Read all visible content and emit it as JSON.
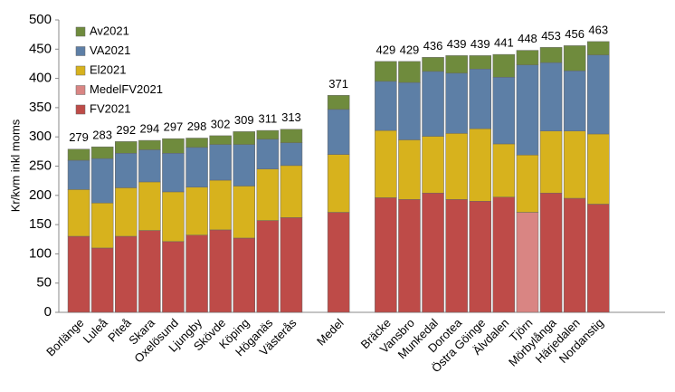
{
  "chart_data": {
    "type": "stacked-bar",
    "y_label": "Kr/kvm inkl moms",
    "categories": [
      "Borlänge",
      "Luleå",
      "Piteå",
      "Skara",
      "Oxelösund",
      "Ljungby",
      "Skövde",
      "Köping",
      "Höganäs",
      "Västerås",
      null,
      "Medel",
      null,
      "Bräcke",
      "Vansbro",
      "Munkedal",
      "Dorotea",
      "Östra Göinge",
      "Älvdalen",
      "Tjörn",
      "Mörbylånga",
      "Härjedalen",
      "Nordanstig"
    ],
    "series": [
      {
        "name": "FV2021",
        "color": "#be4b48",
        "values": [
          130,
          110,
          130,
          140,
          121,
          132,
          141,
          127,
          157,
          162,
          null,
          171,
          null,
          196,
          193,
          204,
          193,
          190,
          197,
          null,
          204,
          195,
          185
        ]
      },
      {
        "name": "MedelFV2021",
        "color": "#d98583",
        "values": [
          null,
          null,
          null,
          null,
          null,
          null,
          null,
          null,
          null,
          null,
          null,
          null,
          null,
          null,
          null,
          null,
          null,
          null,
          null,
          171,
          null,
          null,
          null
        ]
      },
      {
        "name": "El2021",
        "color": "#d7b21d",
        "values": [
          80,
          77,
          83,
          83,
          85,
          82,
          85,
          89,
          88,
          89,
          null,
          99,
          null,
          115,
          102,
          97,
          113,
          124,
          91,
          98,
          106,
          115,
          120
        ]
      },
      {
        "name": "VA2021",
        "color": "#5d7fa6",
        "values": [
          50,
          76,
          59,
          55,
          66,
          68,
          61,
          71,
          51,
          39,
          null,
          77,
          null,
          84,
          98,
          111,
          103,
          102,
          114,
          154,
          117,
          103,
          135
        ]
      },
      {
        "name": "Av2021",
        "color": "#6f8b3d",
        "values": [
          19,
          20,
          20,
          16,
          25,
          16,
          15,
          22,
          15,
          23,
          null,
          24,
          null,
          34,
          36,
          24,
          30,
          23,
          39,
          25,
          26,
          43,
          23
        ]
      }
    ],
    "totals": [
      279,
      283,
      292,
      294,
      297,
      298,
      302,
      309,
      311,
      313,
      null,
      371,
      null,
      429,
      429,
      436,
      439,
      439,
      441,
      448,
      453,
      456,
      463
    ],
    "ylim": [
      0,
      500
    ],
    "yticks": [
      0,
      50,
      100,
      150,
      200,
      250,
      300,
      350,
      400,
      450,
      500
    ],
    "grid": false,
    "legend": "top-left"
  }
}
